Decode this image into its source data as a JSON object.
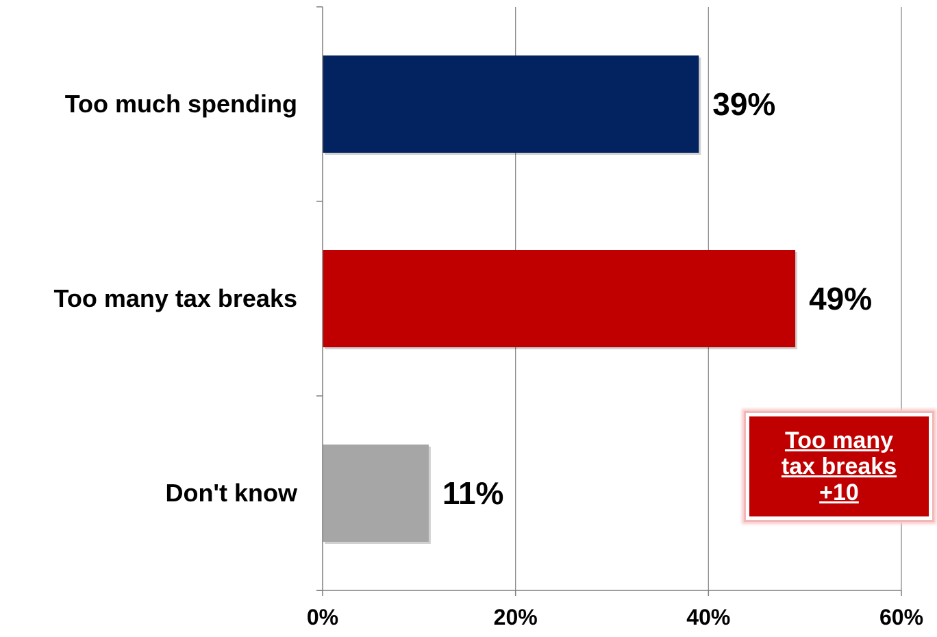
{
  "chart_data": {
    "type": "bar",
    "orientation": "horizontal",
    "categories": [
      "Too much spending",
      "Too many tax breaks",
      "Don't know"
    ],
    "values": [
      39,
      49,
      11
    ],
    "value_labels": [
      "39%",
      "49%",
      "11%"
    ],
    "colors": [
      "#032260",
      "#c00000",
      "#a6a6a6"
    ],
    "xlim": [
      0,
      60
    ],
    "x_ticks": [
      0,
      20,
      40,
      60
    ],
    "x_tick_labels": [
      "0%",
      "20%",
      "40%",
      "60%"
    ],
    "grid": "vertical",
    "title": "",
    "xlabel": "",
    "ylabel": ""
  },
  "callout": {
    "lines": [
      "Too many",
      "tax breaks",
      "+10"
    ],
    "background": "#c00000",
    "text_color": "#ffffff"
  }
}
